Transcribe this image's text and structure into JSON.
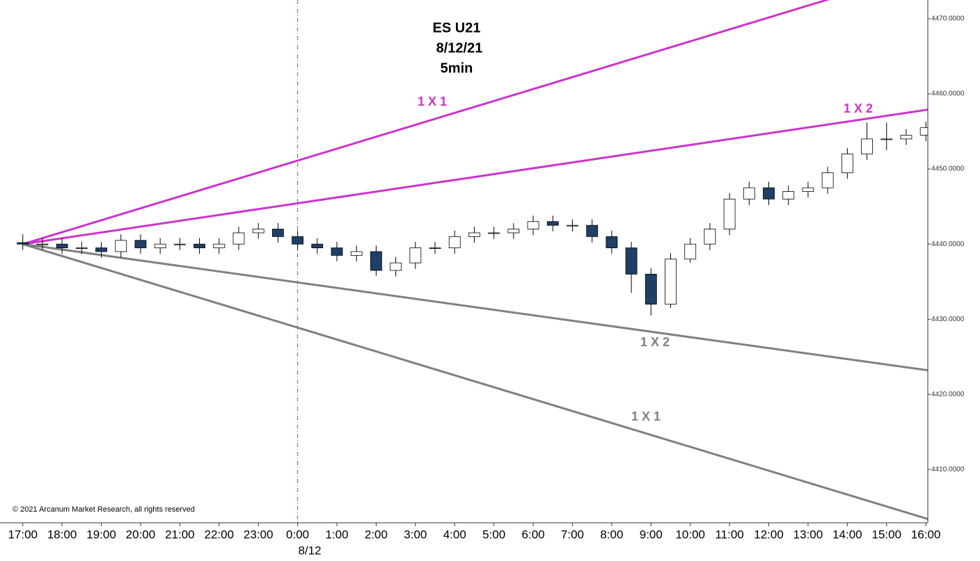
{
  "chart_data": {
    "type": "candlestick",
    "title_lines": [
      "ES U21",
      "8/12/21",
      "5min"
    ],
    "copyright": "© 2021 Arcanum Market Research, all rights reserved",
    "date_label": "8/12",
    "x": [
      0,
      0.5,
      1,
      1.5,
      2,
      2.5,
      3,
      3.5,
      4,
      4.5,
      5,
      5.5,
      6,
      6.5,
      7,
      7.5,
      8,
      8.5,
      9,
      9.5,
      10,
      10.5,
      11,
      11.5,
      12,
      12.5,
      13,
      13.5,
      14,
      14.5,
      15,
      15.5,
      16,
      16.5,
      17,
      17.5,
      18,
      18.5,
      19,
      19.5,
      20,
      20.5,
      21,
      21.5,
      22,
      22.5,
      23
    ],
    "open": [
      4440.2,
      4440,
      4440,
      4439.5,
      4439.5,
      4439,
      4440.5,
      4439.5,
      4440,
      4440,
      4439.5,
      4440,
      4441.5,
      4442,
      4441,
      4440,
      4439.5,
      4438.5,
      4439,
      4436.5,
      4437.5,
      4439.5,
      4439.5,
      4441,
      4441.5,
      4441.5,
      4442,
      4443,
      4442.5,
      4442.5,
      4441,
      4439.5,
      4436,
      4432,
      4438,
      4440,
      4442,
      4446,
      4447.5,
      4446,
      4447,
      4447.5,
      4449.5,
      4452,
      4454,
      4454,
      4454.5
    ],
    "high": [
      4441.3,
      4440.8,
      4440.8,
      4440.3,
      4440.3,
      4441.3,
      4441.3,
      4440.8,
      4440.8,
      4440.8,
      4440.8,
      4442.3,
      4442.8,
      4442.8,
      4441.8,
      4440.8,
      4440.3,
      4439.8,
      4439.8,
      4438.3,
      4440.3,
      4440.3,
      4441.8,
      4442.3,
      4442.3,
      4442.8,
      4443.8,
      4443.8,
      4443.3,
      4443.3,
      4441.8,
      4440.3,
      4436.8,
      4438.8,
      4440.8,
      4442.8,
      4446.8,
      4448.3,
      4448.3,
      4447.8,
      4448.3,
      4450.3,
      4452.8,
      4456.2,
      4456.2,
      4455.3,
      4456.3
    ],
    "low": [
      4439.2,
      4439.2,
      4438.7,
      4438.7,
      4438.2,
      4438.2,
      4438.7,
      4438.7,
      4439.2,
      4438.7,
      4438.7,
      4439.2,
      4440.7,
      4440.2,
      4439.2,
      4438.7,
      4437.7,
      4437.7,
      4435.8,
      4435.7,
      4436.7,
      4438.7,
      4438.7,
      4440.2,
      4440.7,
      4440.7,
      4441.2,
      4441.7,
      4441.7,
      4440.2,
      4438.7,
      4433.5,
      4430.5,
      4431.5,
      4437.5,
      4439.2,
      4441.2,
      4445.2,
      4445.2,
      4445.2,
      4446.2,
      4446.7,
      4448.7,
      4451.2,
      4452.5,
      4453.2,
      4453.7
    ],
    "close": [
      4440,
      4440,
      4439.5,
      4439.5,
      4439,
      4440.5,
      4439.5,
      4440,
      4440,
      4439.5,
      4440,
      4441.5,
      4442,
      4441,
      4440,
      4439.5,
      4438.5,
      4439,
      4436.5,
      4437.5,
      4439.5,
      4439.5,
      4441,
      4441.5,
      4441.5,
      4442,
      4443,
      4442.5,
      4442.5,
      4441,
      4439.5,
      4436,
      4432,
      4438,
      4440,
      4442,
      4446,
      4447.5,
      4446,
      4447,
      4447.5,
      4449.5,
      4452,
      4454,
      4454,
      4454.5,
      4455.5
    ],
    "up_color": "#ffffff",
    "down_color": "#1f3f66",
    "lines": [
      {
        "name": "1 X 1",
        "color": "#cc33cc",
        "x": [
          0,
          23.05
        ],
        "y": [
          4440,
          4476.6
        ]
      },
      {
        "name": "1 X 2",
        "color": "#cc33cc",
        "x": [
          0,
          23.05
        ],
        "y": [
          4440,
          4457.9
        ]
      },
      {
        "name": "1 X 2",
        "color": "#808080",
        "x": [
          0,
          23.05
        ],
        "y": [
          4440,
          4423.2
        ]
      },
      {
        "name": "1 X 1",
        "color": "#808080",
        "x": [
          0,
          23.05
        ],
        "y": [
          4440,
          4403.4
        ]
      }
    ],
    "xlim": [
      -0.58,
      23.05
    ],
    "ylim": [
      4402.9,
      4472.5
    ],
    "xticks": [
      {
        "value": 0,
        "label": "17:00"
      },
      {
        "value": 1,
        "label": "18:00"
      },
      {
        "value": 2,
        "label": "19:00"
      },
      {
        "value": 3,
        "label": "20:00"
      },
      {
        "value": 4,
        "label": "21:00"
      },
      {
        "value": 5,
        "label": "22:00"
      },
      {
        "value": 6,
        "label": "23:00"
      },
      {
        "value": 7,
        "label": "0:00"
      },
      {
        "value": 8,
        "label": "1:00"
      },
      {
        "value": 9,
        "label": "2:00"
      },
      {
        "value": 10,
        "label": "3:00"
      },
      {
        "value": 11,
        "label": "4:00"
      },
      {
        "value": 12,
        "label": "5:00"
      },
      {
        "value": 13,
        "label": "6:00"
      },
      {
        "value": 14,
        "label": "7:00"
      },
      {
        "value": 15,
        "label": "8:00"
      },
      {
        "value": 16,
        "label": "9:00"
      },
      {
        "value": 17,
        "label": "10:00"
      },
      {
        "value": 18,
        "label": "11:00"
      },
      {
        "value": 19,
        "label": "12:00"
      },
      {
        "value": 20,
        "label": "13:00"
      },
      {
        "value": 21,
        "label": "14:00"
      },
      {
        "value": 22,
        "label": "15:00"
      },
      {
        "value": 23,
        "label": "16:00"
      }
    ],
    "yticks": [
      {
        "value": 4410,
        "label": "4410.0000"
      },
      {
        "value": 4420,
        "label": "4420.0000"
      },
      {
        "value": 4430,
        "label": "4430.0000"
      },
      {
        "value": 4440,
        "label": "4440.0000"
      },
      {
        "value": 4450,
        "label": "4450.0000"
      },
      {
        "value": 4460,
        "label": "4460.0000"
      },
      {
        "value": 4470,
        "label": "4470.0000"
      }
    ],
    "session_line_x": 7
  }
}
